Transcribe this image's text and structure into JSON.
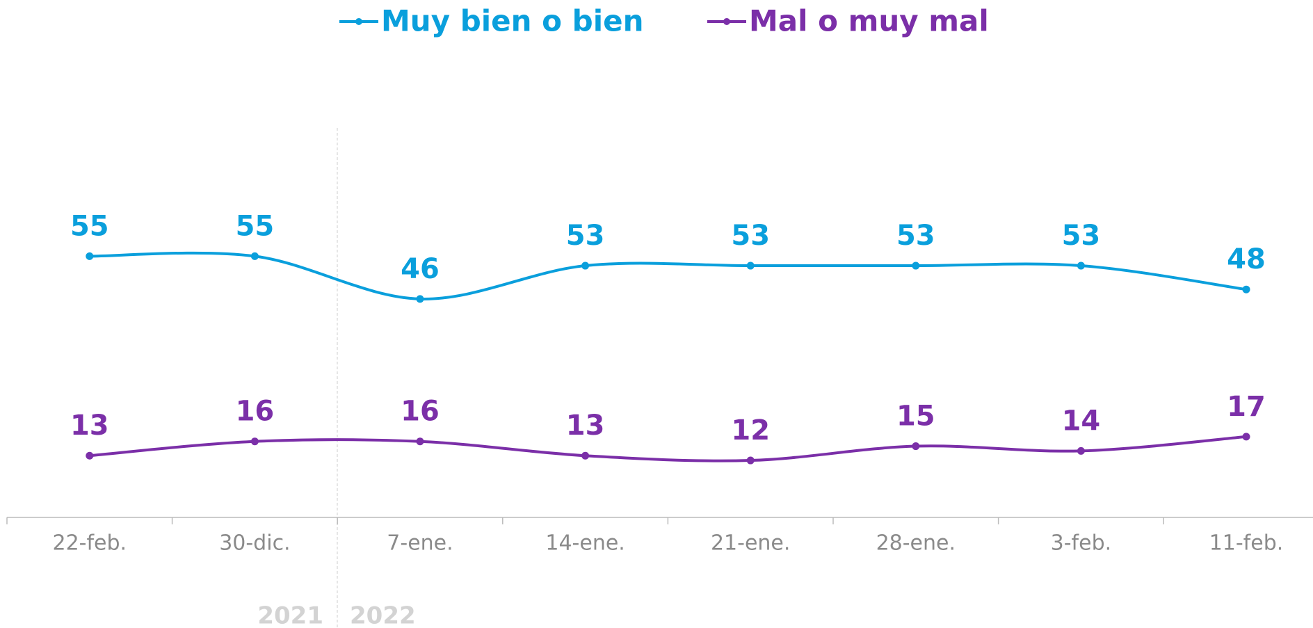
{
  "chart_data": {
    "type": "line",
    "categories": [
      "22-feb.",
      "30-dic.",
      "7-ene.",
      "14-ene.",
      "21-ene.",
      "28-ene.",
      "3-feb.",
      "11-feb."
    ],
    "series": [
      {
        "name": "Muy bien o bien",
        "color": "#0a9fdc",
        "values": [
          55,
          55,
          46,
          53,
          53,
          53,
          53,
          48
        ]
      },
      {
        "name": "Mal o muy mal",
        "color": "#7b2fa8",
        "values": [
          13,
          16,
          16,
          13,
          12,
          15,
          14,
          17
        ]
      }
    ],
    "ylim": [
      0,
      82
    ],
    "annotations": [
      "2021",
      "2022"
    ],
    "legend": "top"
  }
}
